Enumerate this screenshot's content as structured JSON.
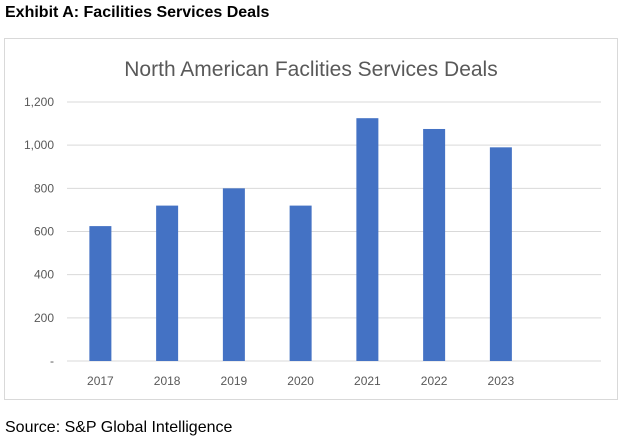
{
  "exhibit_title": "Exhibit A: Facilities Services Deals",
  "source": "Source: S&P Global Intelligence",
  "colors": {
    "bar": "#4472c4",
    "gridline": "#d9d9d9",
    "axis_text": "#595959",
    "title_text": "#595959",
    "frame_border": "#d9d9d9"
  },
  "chart_data": {
    "type": "bar",
    "title": "North American Faclities Services Deals",
    "xlabel": "",
    "ylabel": "",
    "categories": [
      "2017",
      "2018",
      "2019",
      "2020",
      "2021",
      "2022",
      "2023"
    ],
    "values": [
      625,
      720,
      800,
      720,
      1125,
      1075,
      990
    ],
    "ylim": [
      0,
      1200
    ],
    "y_ticks": [
      0,
      200,
      400,
      600,
      800,
      1000,
      1200
    ],
    "y_tick_labels": [
      "-",
      "200",
      "400",
      "600",
      "800",
      "1,000",
      "1,200"
    ],
    "grid": true,
    "legend": "none"
  }
}
